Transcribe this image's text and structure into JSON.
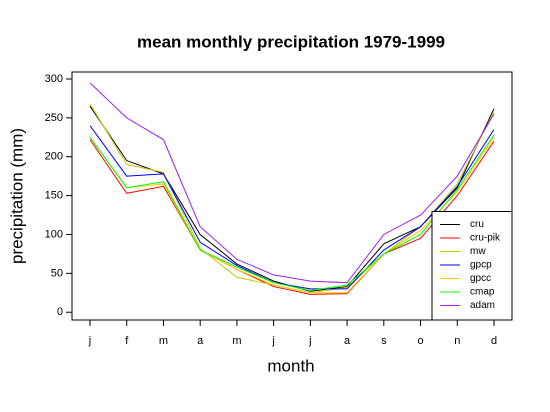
{
  "chart_data": {
    "type": "line",
    "title": "mean monthly precipitation 1979-1999",
    "xlabel": "month",
    "ylabel": "precipitation (mm)",
    "categories": [
      "j",
      "f",
      "m",
      "a",
      "m",
      "j",
      "j",
      "a",
      "s",
      "o",
      "n",
      "d"
    ],
    "series": [
      {
        "name": "cru",
        "color": "#000000",
        "values": [
          265,
          195,
          178,
          100,
          62,
          40,
          27,
          33,
          88,
          110,
          160,
          262
        ]
      },
      {
        "name": "cru-pik",
        "color": "#ff0000",
        "values": [
          222,
          153,
          162,
          80,
          55,
          33,
          23,
          24,
          75,
          95,
          150,
          220
        ]
      },
      {
        "name": "mw",
        "color": "#c8c800",
        "values": [
          268,
          190,
          180,
          82,
          45,
          35,
          25,
          32,
          75,
          110,
          165,
          258
        ]
      },
      {
        "name": "gpcp",
        "color": "#0000ff",
        "values": [
          240,
          175,
          178,
          90,
          60,
          38,
          30,
          30,
          80,
          110,
          162,
          235
        ]
      },
      {
        "name": "gpcc",
        "color": "#ffcc00",
        "values": [
          225,
          160,
          165,
          80,
          55,
          35,
          25,
          25,
          75,
          105,
          155,
          225
        ]
      },
      {
        "name": "cmap",
        "color": "#00ff00",
        "values": [
          225,
          160,
          168,
          80,
          58,
          38,
          28,
          35,
          75,
          100,
          158,
          228
        ]
      },
      {
        "name": "adam",
        "color": "#a020f0",
        "values": [
          295,
          250,
          222,
          110,
          68,
          48,
          40,
          38,
          100,
          125,
          175,
          255
        ]
      }
    ],
    "ylim": [
      -10,
      309
    ],
    "yticks": [
      0,
      50,
      100,
      150,
      200,
      250,
      300
    ],
    "legend": "bottom-right"
  }
}
